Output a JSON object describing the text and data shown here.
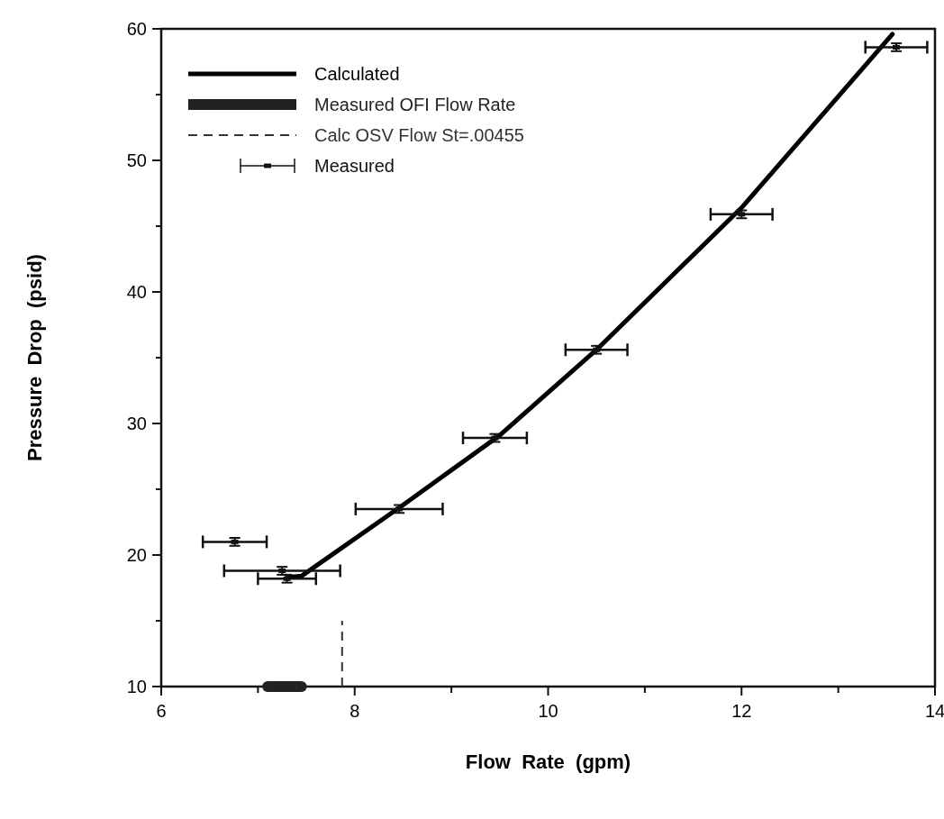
{
  "chart_data": {
    "type": "line",
    "xlabel": "Flow  Rate  (gpm)",
    "ylabel": "Pressure  Drop  (psid)",
    "xlim": [
      6,
      14
    ],
    "xticks": [
      6,
      {
        "value": 7,
        "label": null
      },
      8,
      {
        "value": 9,
        "label": null
      },
      10,
      {
        "value": 11,
        "label": null
      },
      12,
      {
        "value": 13,
        "label": null
      },
      14
    ],
    "ylim": [
      10,
      60
    ],
    "yticks": [
      10,
      {
        "value": 15,
        "label": null
      },
      20,
      {
        "value": 25,
        "label": null
      },
      30,
      {
        "value": 35,
        "label": null
      },
      40,
      {
        "value": 45,
        "label": null
      },
      50,
      {
        "value": 55,
        "label": null
      },
      60
    ],
    "legend": "top left",
    "grid": false,
    "series": [
      {
        "name": "Calculated",
        "color": "#000000",
        "line_style": "solid",
        "x": [
          7.3,
          7.45,
          8.5,
          9.5,
          10.5,
          12.0,
          13.56
        ],
        "values": [
          18.3,
          18.4,
          23.8,
          29.1,
          35.6,
          46.4,
          59.6
        ]
      },
      {
        "name": "Measured OFI Flow Rate",
        "color": "#222222",
        "line_style": "solid",
        "x": [
          7.1,
          7.45
        ],
        "values": [
          10,
          10
        ]
      },
      {
        "name": "Calc OSV Flow St=.00455",
        "color": "#333333",
        "line_style": "dashed",
        "x": [
          7.87,
          7.87
        ],
        "values": [
          10,
          15
        ]
      },
      {
        "name": "Measured",
        "type": "scatter",
        "color": "#111111",
        "marker": "square",
        "x": [
          6.76,
          7.25,
          7.3,
          8.46,
          9.45,
          10.5,
          12.0,
          13.6
        ],
        "values": [
          21.0,
          18.8,
          18.2,
          23.5,
          28.9,
          35.6,
          45.9,
          58.6
        ],
        "errors": [
          0.3,
          0.3,
          0.3,
          0.3,
          0.3,
          0.3,
          0.3,
          0.3
        ],
        "xerrors": [
          0.33,
          0.6,
          0.3,
          0.45,
          0.33,
          0.32,
          0.32,
          0.32
        ]
      }
    ]
  }
}
